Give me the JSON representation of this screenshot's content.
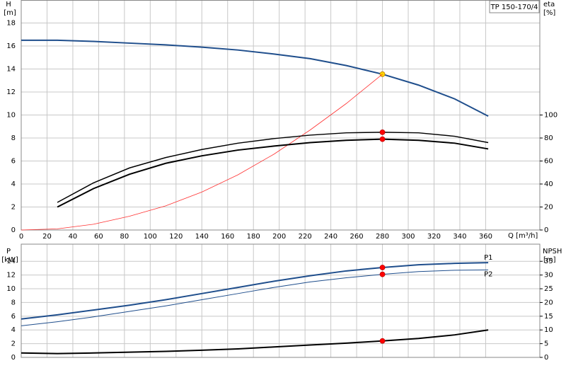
{
  "chart_data": [
    {
      "type": "line",
      "title": "TP 150-170/4",
      "ylabel": "H",
      "yunit": "[m]",
      "y2label": "eta",
      "y2unit": "[%]",
      "xlabel": "Q [m³/h]",
      "xlim": [
        0,
        402
      ],
      "xticks": [
        0,
        20,
        40,
        60,
        80,
        100,
        120,
        140,
        160,
        180,
        200,
        220,
        240,
        260,
        280,
        300,
        320,
        340,
        360
      ],
      "ylim": [
        0,
        20
      ],
      "yticks": [
        0,
        2,
        4,
        6,
        8,
        10,
        12,
        14,
        16,
        18
      ],
      "y2lim": [
        0,
        200
      ],
      "y2ticks": [
        0,
        20,
        40,
        60,
        80,
        100
      ],
      "grid": true,
      "duty_x": 280,
      "series": [
        {
          "color": "#1f4e8c",
          "width": 2,
          "marker_color": "#ffd700",
          "x": [
            0,
            28,
            56,
            84,
            112,
            140,
            168,
            196,
            224,
            252,
            280,
            308,
            336,
            362
          ],
          "values": [
            16.5,
            16.5,
            16.4,
            16.25,
            16.1,
            15.9,
            15.65,
            15.3,
            14.9,
            14.3,
            13.55,
            12.6,
            11.4,
            9.9
          ]
        },
        {
          "color": "#ff3030",
          "width": 0.8,
          "x": [
            0,
            28,
            56,
            84,
            112,
            140,
            168,
            196,
            224,
            252,
            280
          ],
          "values": [
            0,
            0.1,
            0.5,
            1.2,
            2.1,
            3.3,
            4.8,
            6.6,
            8.7,
            11.0,
            13.55
          ]
        },
        {
          "color": "#000000",
          "width": 1.5,
          "axis": "y2",
          "marker_color": "#ff0000",
          "x": [
            28,
            56,
            84,
            112,
            140,
            168,
            196,
            224,
            252,
            280,
            308,
            336,
            362
          ],
          "values": [
            24,
            41,
            54,
            63,
            70,
            75.5,
            79.5,
            82.5,
            84.5,
            85,
            84.5,
            81.5,
            76
          ]
        },
        {
          "color": "#000000",
          "width": 2,
          "axis": "y2",
          "marker_color": "#ff0000",
          "x": [
            28,
            56,
            84,
            112,
            140,
            168,
            196,
            224,
            252,
            280,
            308,
            336,
            362
          ],
          "values": [
            20,
            36,
            48.5,
            58,
            64.5,
            69.5,
            73,
            76,
            78,
            79,
            78,
            75.5,
            70.5
          ]
        }
      ]
    },
    {
      "type": "line",
      "ylabel": "P",
      "yunit": "[kW]",
      "y2label": "NPSH",
      "y2unit": "[m]",
      "xlim": [
        0,
        402
      ],
      "ylim": [
        0,
        16.5
      ],
      "yticks": [
        0,
        2,
        4,
        6,
        8,
        10,
        12,
        14
      ],
      "y2lim": [
        0,
        41.25
      ],
      "y2ticks": [
        0,
        5,
        10,
        15,
        20,
        25,
        30,
        35
      ],
      "grid": true,
      "duty_x": 280,
      "series": [
        {
          "name": "P1",
          "color": "#1f4e8c",
          "width": 2,
          "marker_color": "#ff0000",
          "x": [
            0,
            28,
            56,
            84,
            112,
            140,
            168,
            196,
            224,
            252,
            280,
            308,
            336,
            362
          ],
          "values": [
            5.6,
            6.2,
            6.9,
            7.6,
            8.4,
            9.3,
            10.2,
            11.1,
            11.9,
            12.6,
            13.1,
            13.5,
            13.7,
            13.8
          ]
        },
        {
          "name": "P2",
          "color": "#1f4e8c",
          "width": 1,
          "marker_color": "#ff0000",
          "x": [
            0,
            28,
            56,
            84,
            112,
            140,
            168,
            196,
            224,
            252,
            280,
            308,
            336,
            362
          ],
          "values": [
            4.6,
            5.2,
            5.9,
            6.7,
            7.5,
            8.4,
            9.3,
            10.2,
            11.0,
            11.6,
            12.1,
            12.5,
            12.7,
            12.75
          ]
        },
        {
          "color": "#000000",
          "width": 2,
          "axis": "y2",
          "marker_color": "#ff0000",
          "x": [
            0,
            28,
            56,
            84,
            112,
            140,
            168,
            196,
            224,
            252,
            280,
            308,
            336,
            362
          ],
          "values": [
            1.6,
            1.4,
            1.6,
            1.9,
            2.2,
            2.6,
            3.1,
            3.8,
            4.5,
            5.2,
            6.0,
            6.9,
            8.2,
            10.0
          ]
        }
      ]
    }
  ]
}
